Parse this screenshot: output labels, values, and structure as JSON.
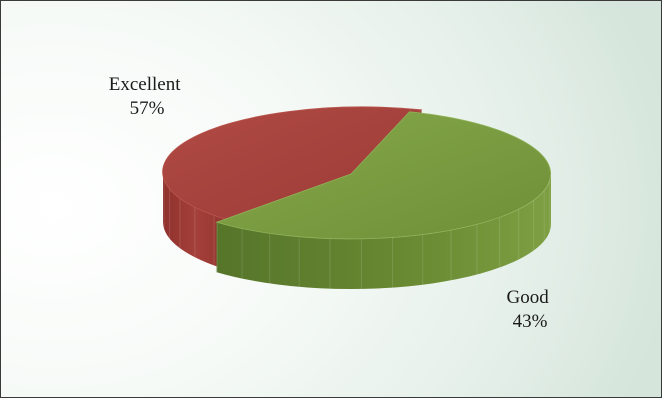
{
  "chart_data": {
    "type": "pie",
    "style": "3d-exploded",
    "categories": [
      "Excellent",
      "Good"
    ],
    "values": [
      57,
      43
    ],
    "labels": [
      "Excellent\n57%",
      "Good\n43%"
    ],
    "colors": {
      "Excellent": "#78993f",
      "Good": "#a6403b"
    },
    "legend": "none",
    "title": ""
  }
}
